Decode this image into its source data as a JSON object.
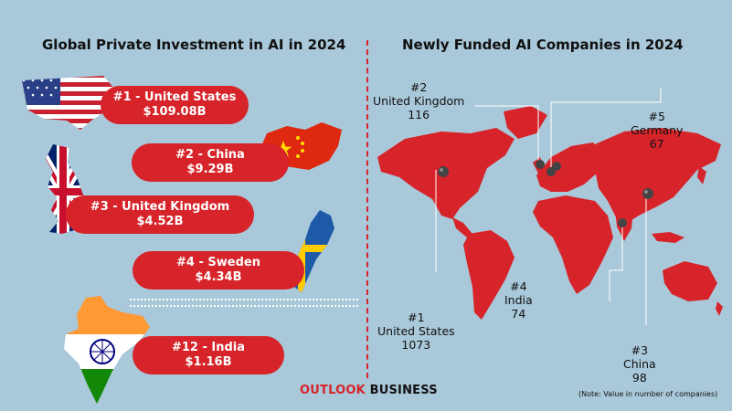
{
  "chart_data": [
    {
      "type": "bar",
      "title": "Global Private Investment in AI in 2024",
      "unit": "$B",
      "categories": [
        "United States",
        "China",
        "United Kingdom",
        "Sweden",
        "India"
      ],
      "ranks": [
        "#1",
        "#2",
        "#3",
        "#4",
        "#12"
      ],
      "values": [
        109.08,
        9.29,
        4.52,
        4.34,
        1.16
      ],
      "rank_labels": [
        "#1 - United States",
        "#2 - China",
        "#3 - United Kingdom",
        "#4 - Sweden",
        "#12 - India"
      ],
      "value_labels": [
        "$109.08B",
        "$9.29B",
        "$4.52B",
        "$4.34B",
        "$1.16B"
      ]
    },
    {
      "type": "map",
      "title": "Newly Funded AI Companies in 2024",
      "note": "(Note: Value in number of companies)",
      "points": [
        {
          "rank": "#1",
          "country": "United States",
          "value": 1073
        },
        {
          "rank": "#2",
          "country": "United Kingdom",
          "value": 116
        },
        {
          "rank": "#3",
          "country": "China",
          "value": 98
        },
        {
          "rank": "#4",
          "country": "India",
          "value": 74
        },
        {
          "rank": "#5",
          "country": "Germany",
          "value": 67
        }
      ]
    }
  ],
  "brand": {
    "part1": "OUTLOOK",
    "part2": " BUSINESS"
  },
  "colors": {
    "accent": "#d6242a",
    "background": "#a9c8d9",
    "pin": "#444444"
  },
  "icons": [
    "us-flag-icon",
    "china-flag-icon",
    "uk-flag-icon",
    "sweden-flag-icon",
    "india-flag-icon",
    "map-pin-icon"
  ]
}
